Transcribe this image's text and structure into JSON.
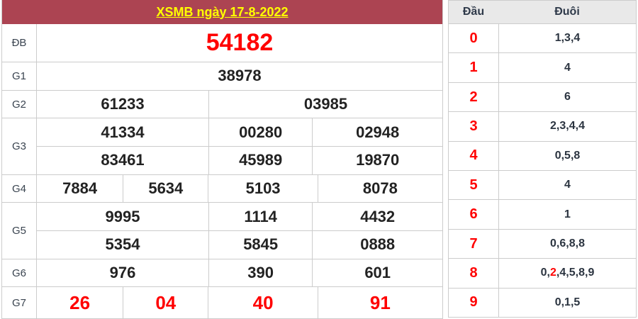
{
  "title": "XSMB ngày 17-8-2022",
  "colors": {
    "header_bg": "#AC4452",
    "title_text": "#FFFF00",
    "highlight_red": "#FF0000",
    "grid_border": "#CCCCCC",
    "ht_header_bg": "#E9E9E9"
  },
  "prize_table": {
    "rows": [
      {
        "label": "ĐB",
        "style": "special",
        "lines": [
          [
            "54182"
          ]
        ]
      },
      {
        "label": "G1",
        "style": "normal",
        "lines": [
          [
            "38978"
          ]
        ]
      },
      {
        "label": "G2",
        "style": "normal",
        "lines": [
          [
            "61233",
            "03985"
          ]
        ]
      },
      {
        "label": "G3",
        "style": "normal",
        "lines": [
          [
            "41334",
            "00280",
            "02948"
          ],
          [
            "83461",
            "45989",
            "19870"
          ]
        ]
      },
      {
        "label": "G4",
        "style": "normal",
        "lines": [
          [
            "7884",
            "5634",
            "5103",
            "8078"
          ]
        ]
      },
      {
        "label": "G5",
        "style": "normal",
        "lines": [
          [
            "9995",
            "1114",
            "4432"
          ],
          [
            "5354",
            "5845",
            "0888"
          ]
        ]
      },
      {
        "label": "G6",
        "style": "normal",
        "lines": [
          [
            "976",
            "390",
            "601"
          ]
        ]
      },
      {
        "label": "G7",
        "style": "red",
        "lines": [
          [
            "26",
            "04",
            "40",
            "91"
          ]
        ]
      }
    ]
  },
  "head_tail": {
    "head_label": "Đầu",
    "tail_label": "Đuôi",
    "rows": [
      {
        "head": "0",
        "tails": [
          {
            "d": "1"
          },
          {
            "d": "3"
          },
          {
            "d": "4"
          }
        ]
      },
      {
        "head": "1",
        "tails": [
          {
            "d": "4"
          }
        ]
      },
      {
        "head": "2",
        "tails": [
          {
            "d": "6"
          }
        ]
      },
      {
        "head": "3",
        "tails": [
          {
            "d": "2"
          },
          {
            "d": "3"
          },
          {
            "d": "4"
          },
          {
            "d": "4"
          }
        ]
      },
      {
        "head": "4",
        "tails": [
          {
            "d": "0"
          },
          {
            "d": "5"
          },
          {
            "d": "8"
          }
        ]
      },
      {
        "head": "5",
        "tails": [
          {
            "d": "4"
          }
        ]
      },
      {
        "head": "6",
        "tails": [
          {
            "d": "1"
          }
        ]
      },
      {
        "head": "7",
        "tails": [
          {
            "d": "0"
          },
          {
            "d": "6"
          },
          {
            "d": "8"
          },
          {
            "d": "8"
          }
        ]
      },
      {
        "head": "8",
        "tails": [
          {
            "d": "0"
          },
          {
            "d": "2",
            "red": true
          },
          {
            "d": "4"
          },
          {
            "d": "5"
          },
          {
            "d": "8"
          },
          {
            "d": "9"
          }
        ]
      },
      {
        "head": "9",
        "tails": [
          {
            "d": "0"
          },
          {
            "d": "1"
          },
          {
            "d": "5"
          }
        ]
      }
    ]
  }
}
